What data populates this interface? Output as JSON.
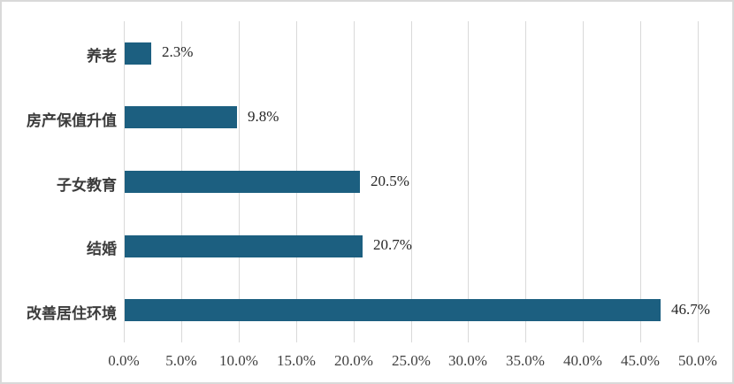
{
  "chart_data": {
    "type": "bar",
    "orientation": "horizontal",
    "title": "",
    "xlabel": "",
    "ylabel": "",
    "categories_top_to_bottom": [
      "养老",
      "房产保值升值",
      "子女教育",
      "结婚",
      "改善居住环境"
    ],
    "values": [
      2.3,
      9.8,
      20.5,
      20.7,
      46.7
    ],
    "value_labels": [
      "2.3%",
      "9.8%",
      "20.5%",
      "20.7%",
      "46.7%"
    ],
    "xlim": [
      0,
      50
    ],
    "x_ticks": [
      0,
      5,
      10,
      15,
      20,
      25,
      30,
      35,
      40,
      45,
      50
    ],
    "x_tick_labels": [
      "0.0%",
      "5.0%",
      "10.0%",
      "15.0%",
      "20.0%",
      "25.0%",
      "30.0%",
      "35.0%",
      "40.0%",
      "45.0%",
      "50.0%"
    ],
    "grid": true,
    "legend": false,
    "data_labels": "outside-end"
  },
  "colors": {
    "bar_fill": "#1c5f80",
    "gridline": "#d9d9d9",
    "frame_border": "#d9d9d9",
    "category_label": "#3b3b3b",
    "value_label": "#262626",
    "tick_label": "#404040",
    "background": "#ffffff"
  }
}
